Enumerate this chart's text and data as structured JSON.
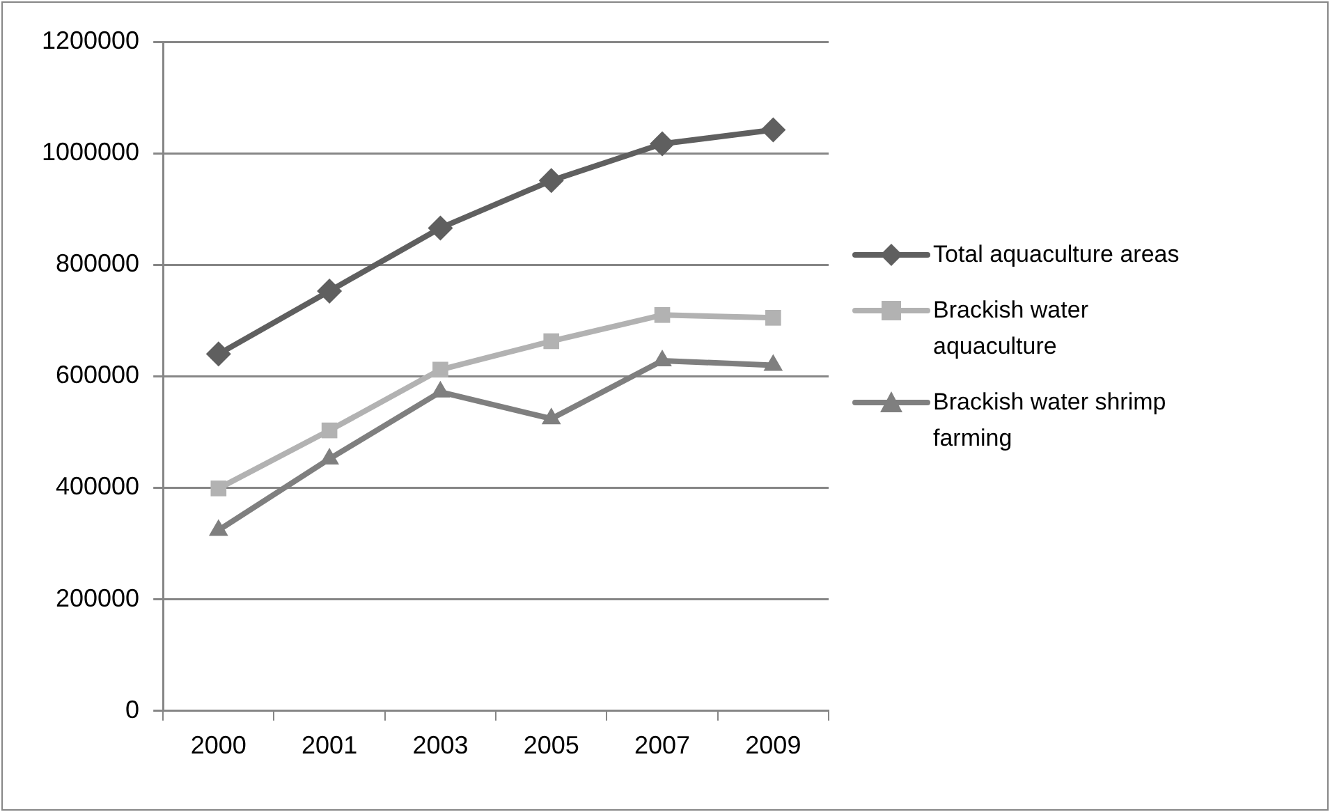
{
  "chart_data": {
    "type": "line",
    "categories": [
      "2000",
      "2001",
      "2003",
      "2005",
      "2007",
      "2009"
    ],
    "series": [
      {
        "name": "Total aquaculture areas",
        "color": "#5f5f5f",
        "marker": "diamond",
        "values": [
          640000,
          753000,
          866000,
          951000,
          1017000,
          1042000
        ]
      },
      {
        "name": "Brackish water aquaculture",
        "color": "#b2b2b2",
        "marker": "square",
        "values": [
          399000,
          503000,
          612000,
          663000,
          710000,
          705000
        ]
      },
      {
        "name": "Brackish water shrimp farming",
        "color": "#7f7f7f",
        "marker": "triangle",
        "values": [
          324000,
          452000,
          572000,
          524000,
          628000,
          620000
        ]
      }
    ],
    "ylim": [
      0,
      1200000
    ],
    "yticks": [
      0,
      200000,
      400000,
      600000,
      800000,
      1000000,
      1200000
    ],
    "grid": "y",
    "legend": "right",
    "line_style": "solid"
  }
}
